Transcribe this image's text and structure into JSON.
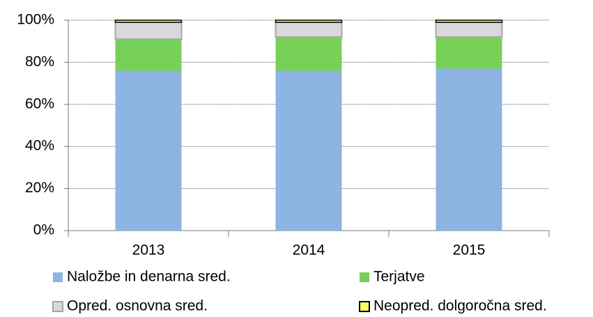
{
  "chart_data": {
    "type": "stacked_bar",
    "categories": [
      "2013",
      "2014",
      "2015"
    ],
    "series": [
      {
        "name": "Naložbe in denarna sred.",
        "color": "#8db4e2",
        "values": [
          76,
          76,
          77
        ]
      },
      {
        "name": "Terjatve",
        "color": "#77d058",
        "values": [
          15,
          16,
          15
        ]
      },
      {
        "name": "Opred. osnovna sred.",
        "color": "#d9d9d9",
        "values": [
          8,
          7,
          7
        ]
      },
      {
        "name": "Neopred. dolgoročna sred.",
        "color": "#ffff66",
        "values": [
          1,
          1,
          1
        ]
      }
    ],
    "ylim": [
      0,
      100
    ],
    "yticks": [
      {
        "value": 0,
        "label": "0%"
      },
      {
        "value": 20,
        "label": "20%"
      },
      {
        "value": 40,
        "label": "40%"
      },
      {
        "value": 60,
        "label": "60%"
      },
      {
        "value": 80,
        "label": "80%"
      },
      {
        "value": 100,
        "label": "100%"
      }
    ],
    "grid": true
  }
}
